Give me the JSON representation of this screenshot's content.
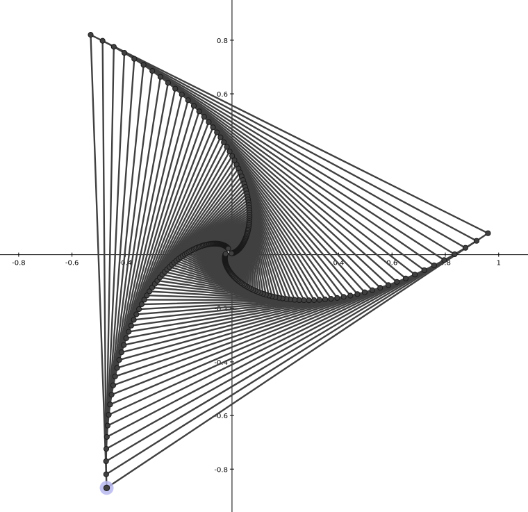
{
  "graphics_view": {
    "x_axis": {
      "min": -0.87,
      "max": 1.11,
      "tick_labels": [
        {
          "value": -0.8,
          "label": "-0.8"
        },
        {
          "value": -0.6,
          "label": "-0.6"
        },
        {
          "value": -0.4,
          "label": "-0.4"
        },
        {
          "value": 0.4,
          "label": "0.4"
        },
        {
          "value": 0.6,
          "label": "0.6"
        },
        {
          "value": 0.8,
          "label": "0.8"
        },
        {
          "value": 1,
          "label": "1"
        }
      ]
    },
    "y_axis": {
      "min": -0.96,
      "max": 0.95,
      "tick_labels": [
        {
          "value": 0.8,
          "label": "0.8"
        },
        {
          "value": 0.6,
          "label": "0.6"
        },
        {
          "value": -0.2,
          "label": "-0.2"
        },
        {
          "value": -0.4,
          "label": "-0.4"
        },
        {
          "value": -0.6,
          "label": "-0.6"
        },
        {
          "value": -0.8,
          "label": "-0.8"
        }
      ]
    },
    "construction": {
      "type": "rotating-triangle-spiral",
      "levels": 96,
      "outer_vertices": [
        {
          "x": -0.53,
          "y": 0.82
        },
        {
          "x": 0.96,
          "y": 0.08
        },
        {
          "x": -0.47,
          "y": -0.87
        }
      ],
      "interpolation_fraction": 0.03,
      "colors": {
        "segment": "#404040",
        "point": "#404040",
        "point_outline": "#1a1a1a",
        "selected_point_halo": "#b8b8f0",
        "axes": "#000000",
        "background": "#ffffff"
      }
    },
    "selected_point": {
      "x": -0.47,
      "y": -0.87
    }
  }
}
